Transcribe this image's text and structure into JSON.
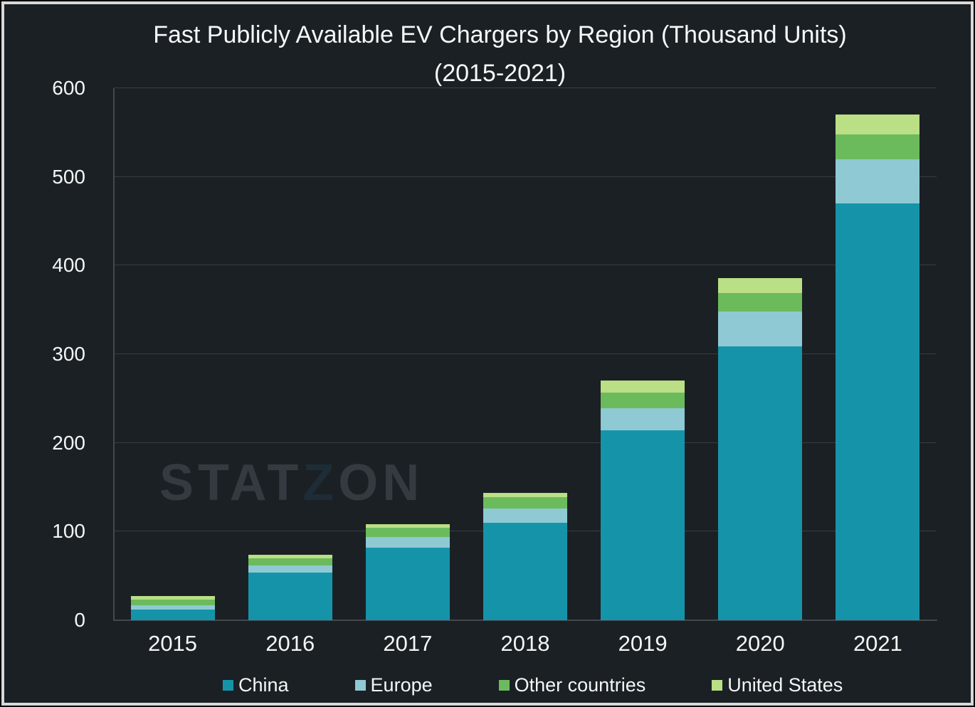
{
  "title": {
    "line1": "Fast Publicly Available EV Chargers by Region (Thousand Units)",
    "line2": "(2015-2021)"
  },
  "watermark": {
    "part1": "STAT",
    "part2": "Z",
    "part3": "ON"
  },
  "colors": {
    "background": "#1b2025",
    "frame_border": "#d8d8d8",
    "gridline": "#383d42",
    "axis": "#43484d",
    "text": "#f4f6f6",
    "watermark": "#343a40",
    "watermark_z": "#1d2c36"
  },
  "chart_data": {
    "type": "bar",
    "stacked": true,
    "title": "Fast Publicly Available EV Chargers by Region (Thousand Units) (2015-2021)",
    "xlabel": "",
    "ylabel": "",
    "ylim": [
      0,
      600
    ],
    "yticks": [
      0,
      100,
      200,
      300,
      400,
      500,
      600
    ],
    "grid": true,
    "legend_position": "bottom",
    "categories": [
      "2015",
      "2016",
      "2017",
      "2018",
      "2019",
      "2020",
      "2021"
    ],
    "series": [
      {
        "name": "China",
        "color": "#1594a9",
        "values": [
          12,
          54,
          82,
          110,
          214,
          309,
          470
        ]
      },
      {
        "name": "Europe",
        "color": "#8fc9d4",
        "values": [
          5,
          8,
          12,
          16,
          25,
          39,
          50
        ]
      },
      {
        "name": "Other countries",
        "color": "#6bbb5d",
        "values": [
          6,
          8,
          10,
          13,
          18,
          21,
          28
        ]
      },
      {
        "name": "United States",
        "color": "#badf84",
        "values": [
          4,
          4,
          4,
          5,
          13,
          17,
          22
        ]
      }
    ],
    "totals": [
      27,
      74,
      108,
      144,
      270,
      386,
      570
    ]
  }
}
